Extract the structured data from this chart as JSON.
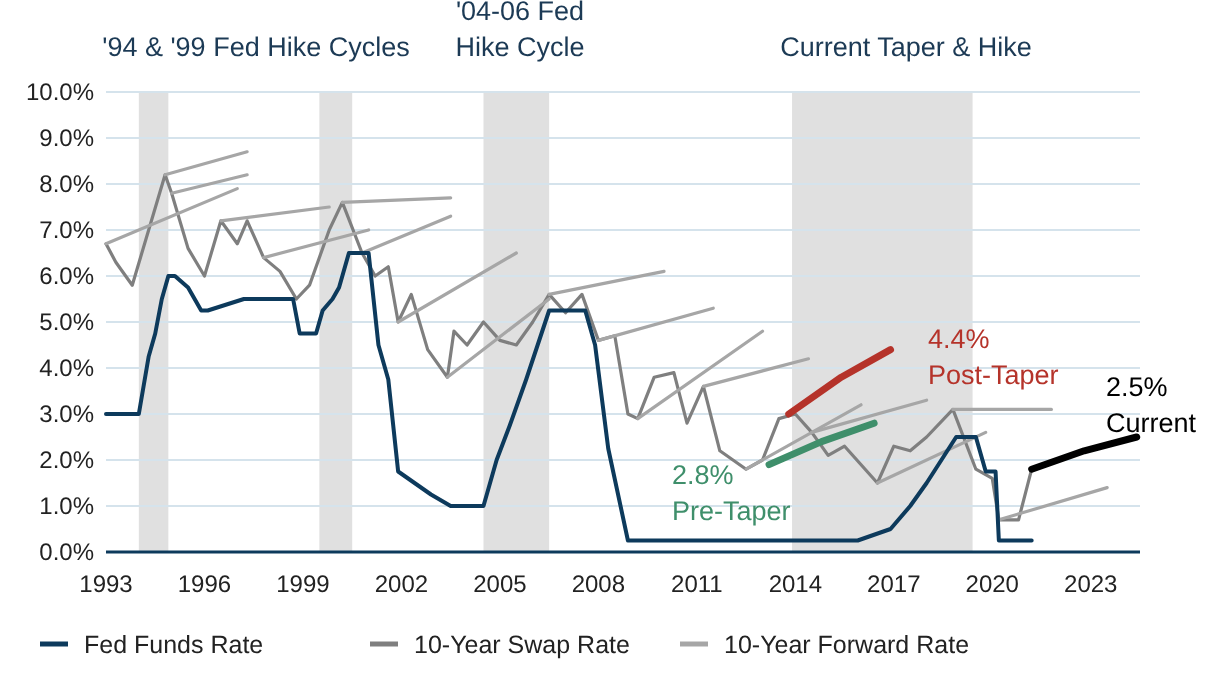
{
  "chart_data": {
    "type": "line",
    "xlim": [
      1993,
      2024.5
    ],
    "ylim": [
      0,
      10
    ],
    "xticks": [
      1993,
      1996,
      1999,
      2002,
      2005,
      2008,
      2011,
      2014,
      2017,
      2020,
      2023
    ],
    "yticks": [
      {
        "value": 0,
        "label": "0.0%"
      },
      {
        "value": 1,
        "label": "1.0%"
      },
      {
        "value": 2,
        "label": "2.0%"
      },
      {
        "value": 3,
        "label": "3.0%"
      },
      {
        "value": 4,
        "label": "4.0%"
      },
      {
        "value": 5,
        "label": "5.0%"
      },
      {
        "value": 6,
        "label": "6.0%"
      },
      {
        "value": 7,
        "label": "7.0%"
      },
      {
        "value": 8,
        "label": "8.0%"
      },
      {
        "value": 9,
        "label": "9.0%"
      },
      {
        "value": 10,
        "label": "10.0%"
      }
    ],
    "grid": "y",
    "legend": "bottom",
    "bands": [
      {
        "axis": "x",
        "from": 1994.0,
        "to": 1994.9,
        "color": "#e0e0e0"
      },
      {
        "axis": "x",
        "from": 1999.5,
        "to": 2000.5,
        "color": "#e0e0e0"
      },
      {
        "axis": "x",
        "from": 2004.5,
        "to": 2006.5,
        "color": "#e0e0e0"
      },
      {
        "axis": "x",
        "from": 2013.9,
        "to": 2019.4,
        "color": "#e0e0e0"
      }
    ],
    "annotations": [
      "'94 & '99 Fed Hike Cycles",
      "'04-06 Fed\nHike Cycle",
      "Current Taper & Hike",
      "2.8%\nPre-Taper",
      "4.4%\nPost-Taper",
      "2.5%\nCurrent"
    ],
    "series": [
      {
        "name": "Fed Funds Rate",
        "color": "#0d3a5c",
        "x": [
          1993,
          1994.0,
          1994.3,
          1994.5,
          1994.7,
          1994.9,
          1995.1,
          1995.5,
          1995.9,
          1996.1,
          1997.2,
          1998.7,
          1998.9,
          1999.4,
          1999.6,
          1999.9,
          2000.1,
          2000.4,
          2001.0,
          2001.3,
          2001.6,
          2001.9,
          2002.9,
          2003.5,
          2004.5,
          2004.9,
          2005.3,
          2005.8,
          2006.5,
          2007.6,
          2007.9,
          2008.3,
          2008.9,
          2015.9,
          2016.9,
          2017.5,
          2018.0,
          2018.9,
          2019.5,
          2019.8,
          2020.1,
          2020.2,
          2021.2
        ],
        "values": [
          3,
          3,
          4.25,
          4.75,
          5.5,
          6.0,
          6.0,
          5.75,
          5.25,
          5.25,
          5.5,
          5.5,
          4.75,
          4.75,
          5.25,
          5.5,
          5.75,
          6.5,
          6.5,
          4.5,
          3.75,
          1.75,
          1.25,
          1.0,
          1.0,
          2.0,
          2.75,
          3.75,
          5.25,
          5.25,
          4.5,
          2.25,
          0.25,
          0.25,
          0.5,
          1.0,
          1.5,
          2.5,
          2.5,
          1.75,
          1.75,
          0.25,
          0.25
        ]
      },
      {
        "name": "10-Year Swap Rate",
        "color": "#7f7f7f",
        "x": [
          1993.0,
          1993.3,
          1993.8,
          1994.3,
          1994.8,
          1995.0,
          1995.5,
          1996.0,
          1996.5,
          1997.0,
          1997.3,
          1997.8,
          1998.3,
          1998.8,
          1999.2,
          1999.8,
          2000.2,
          2000.8,
          2001.2,
          2001.6,
          2001.9,
          2002.3,
          2002.8,
          2003.4,
          2003.6,
          2004.0,
          2004.5,
          2005.0,
          2005.5,
          2006.0,
          2006.5,
          2007.0,
          2007.5,
          2008.0,
          2008.5,
          2008.9,
          2009.2,
          2009.7,
          2010.3,
          2010.7,
          2011.2,
          2011.7,
          2012.5,
          2013.0,
          2013.5,
          2014.0,
          2014.5,
          2015.0,
          2015.5,
          2016.5,
          2017.0,
          2017.5,
          2018.0,
          2018.8,
          2019.5,
          2020.0,
          2020.2,
          2020.8,
          2021.2
        ],
        "values": [
          6.7,
          6.3,
          5.8,
          7.0,
          8.2,
          7.8,
          6.6,
          6.0,
          7.2,
          6.7,
          7.2,
          6.4,
          6.1,
          5.5,
          5.8,
          7.0,
          7.6,
          6.5,
          6.0,
          6.2,
          5.0,
          5.6,
          4.4,
          3.8,
          4.8,
          4.5,
          5.0,
          4.6,
          4.5,
          5.0,
          5.6,
          5.2,
          5.6,
          4.6,
          4.7,
          3.0,
          2.9,
          3.8,
          3.9,
          2.8,
          3.6,
          2.2,
          1.8,
          2.0,
          2.9,
          3.0,
          2.6,
          2.1,
          2.3,
          1.5,
          2.3,
          2.2,
          2.5,
          3.1,
          1.8,
          1.6,
          0.7,
          0.7,
          1.8
        ]
      },
      {
        "name": "10-Year Forward Rate",
        "color": "#a6a6a6",
        "x": [
          1993.0,
          1997.0
        ],
        "values": [
          6.7,
          7.9
        ]
      },
      {
        "color": "#a6a6a6",
        "x": [
          1994.8,
          1997.3
        ],
        "values": [
          8.2,
          8.7
        ]
      },
      {
        "color": "#a6a6a6",
        "x": [
          1995.0,
          1997.3
        ],
        "values": [
          7.8,
          8.2
        ]
      },
      {
        "color": "#a6a6a6",
        "x": [
          1996.5,
          1999.8
        ],
        "values": [
          7.2,
          7.5
        ]
      },
      {
        "color": "#a6a6a6",
        "x": [
          1997.8,
          2001.0
        ],
        "values": [
          6.4,
          7.0
        ]
      },
      {
        "color": "#a6a6a6",
        "x": [
          2000.2,
          2003.5
        ],
        "values": [
          7.6,
          7.7
        ]
      },
      {
        "color": "#a6a6a6",
        "x": [
          2000.8,
          2003.5
        ],
        "values": [
          6.5,
          7.3
        ]
      },
      {
        "color": "#a6a6a6",
        "x": [
          2001.9,
          2005.5
        ],
        "values": [
          5.0,
          6.5
        ]
      },
      {
        "color": "#a6a6a6",
        "x": [
          2003.4,
          2006.5
        ],
        "values": [
          3.8,
          5.5
        ]
      },
      {
        "color": "#a6a6a6",
        "x": [
          2006.5,
          2010.0
        ],
        "values": [
          5.6,
          6.1
        ]
      },
      {
        "color": "#a6a6a6",
        "x": [
          2008.0,
          2011.5
        ],
        "values": [
          4.6,
          5.3
        ]
      },
      {
        "color": "#a6a6a6",
        "x": [
          2009.2,
          2013.0
        ],
        "values": [
          2.9,
          4.8
        ]
      },
      {
        "color": "#a6a6a6",
        "x": [
          2011.2,
          2014.4
        ],
        "values": [
          3.6,
          4.2
        ]
      },
      {
        "color": "#a6a6a6",
        "x": [
          2012.5,
          2016.0
        ],
        "values": [
          1.8,
          3.2
        ]
      },
      {
        "color": "#a6a6a6",
        "x": [
          2014.5,
          2018.0
        ],
        "values": [
          2.6,
          3.3
        ]
      },
      {
        "color": "#a6a6a6",
        "x": [
          2016.5,
          2019.8
        ],
        "values": [
          1.5,
          2.6
        ]
      },
      {
        "color": "#a6a6a6",
        "x": [
          2018.8,
          2021.8
        ],
        "values": [
          3.1,
          3.1
        ]
      },
      {
        "color": "#a6a6a6",
        "x": [
          2020.2,
          2023.5
        ],
        "values": [
          0.7,
          1.4
        ]
      },
      {
        "color": "#3f8f6b",
        "x": [
          2013.2,
          2014.8,
          2016.4
        ],
        "values": [
          1.9,
          2.4,
          2.8
        ]
      },
      {
        "color": "#b5332a",
        "x": [
          2013.8,
          2015.4,
          2016.9
        ],
        "values": [
          3.0,
          3.8,
          4.4
        ]
      },
      {
        "color": "#000000",
        "x": [
          2021.2,
          2022.8,
          2024.4
        ],
        "values": [
          1.8,
          2.2,
          2.5
        ]
      }
    ]
  }
}
